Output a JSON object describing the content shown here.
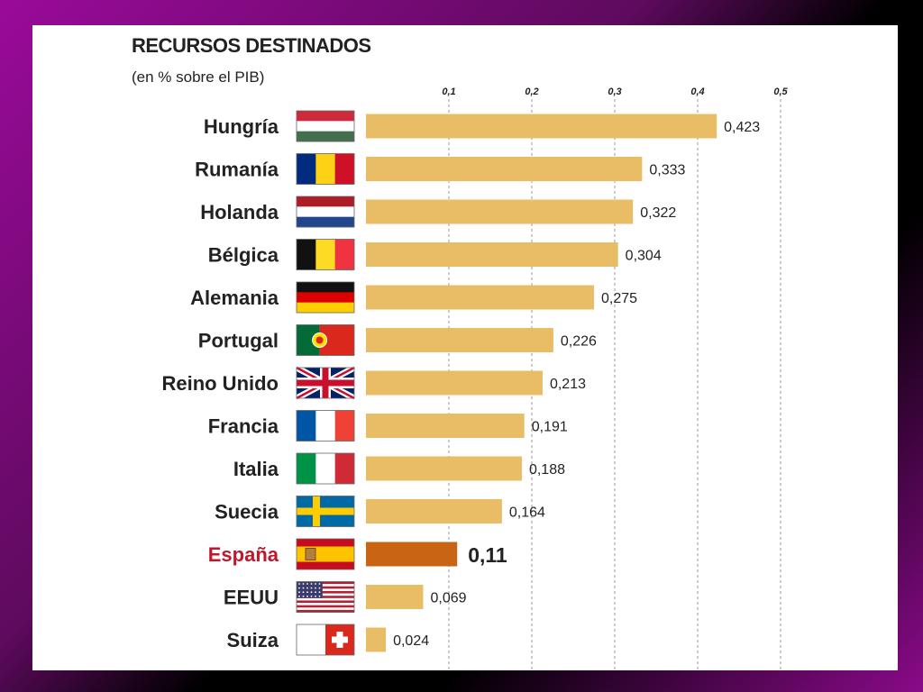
{
  "colors": {
    "bar": "#e8bd66",
    "bar_highlight": "#c86414",
    "label_highlight": "#c0182a",
    "grid": "#9a9a9a"
  },
  "chart_data": {
    "type": "bar",
    "orientation": "horizontal",
    "title": "RECURSOS DESTINADOS",
    "subtitle": "(en % sobre el PIB)",
    "xlim": [
      0,
      0.5
    ],
    "ticks": [
      0.1,
      0.2,
      0.3,
      0.4,
      0.5
    ],
    "tick_labels": [
      "0,1",
      "0,2",
      "0,3",
      "0,4",
      "0,5"
    ],
    "grid": "vertical dashed",
    "highlight": "España",
    "categories": [
      "Hungría",
      "Rumanía",
      "Holanda",
      "Bélgica",
      "Alemania",
      "Portugal",
      "Reino Unido",
      "Francia",
      "Italia",
      "Suecia",
      "España",
      "EEUU",
      "Suiza"
    ],
    "values": [
      0.423,
      0.333,
      0.322,
      0.304,
      0.275,
      0.226,
      0.213,
      0.191,
      0.188,
      0.164,
      0.11,
      0.069,
      0.024
    ],
    "value_labels": [
      "0,423",
      "0,333",
      "0,322",
      "0,304",
      "0,275",
      "0,226",
      "0,213",
      "0,191",
      "0,188",
      "0,164",
      "0,11",
      "0,069",
      "0,024"
    ],
    "flags": [
      "hungary-flag-icon",
      "romania-flag-icon",
      "netherlands-flag-icon",
      "belgium-flag-icon",
      "germany-flag-icon",
      "portugal-flag-icon",
      "united-kingdom-flag-icon",
      "france-flag-icon",
      "italy-flag-icon",
      "sweden-flag-icon",
      "spain-flag-icon",
      "usa-flag-icon",
      "switzerland-flag-icon"
    ]
  }
}
